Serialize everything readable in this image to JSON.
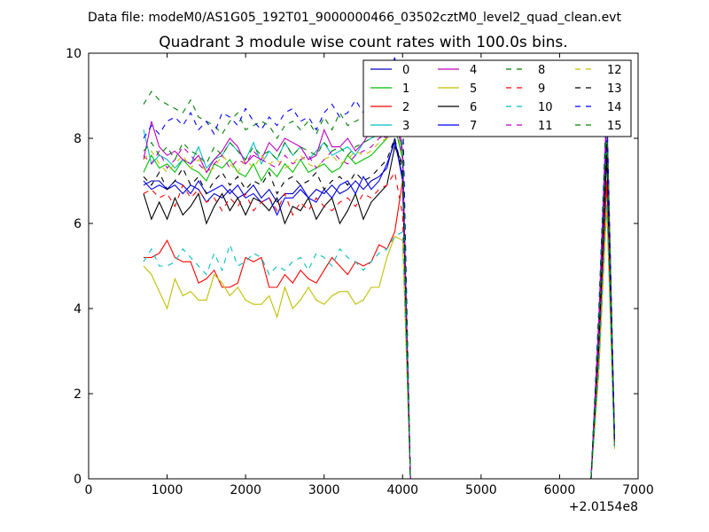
{
  "header": {
    "data_file": "Data file: modeM0/AS1G05_192T01_9000000466_03502cztM0_level2_quad_clean.evt"
  },
  "chart_data": {
    "type": "line",
    "title": "Quadrant 3 module wise count rates with 100.0s bins.",
    "xlabel": "",
    "ylabel": "",
    "x_offset_label": "+2.0154e8",
    "xlim": [
      0,
      7000
    ],
    "ylim": [
      0,
      10
    ],
    "xticks": [
      0,
      1000,
      2000,
      3000,
      4000,
      5000,
      6000,
      7000
    ],
    "yticks": [
      0,
      2,
      4,
      6,
      8,
      10
    ],
    "x": [
      700,
      800,
      900,
      1000,
      1100,
      1200,
      1300,
      1400,
      1500,
      1600,
      1700,
      1800,
      1900,
      2000,
      2100,
      2200,
      2300,
      2400,
      2500,
      2600,
      2700,
      2800,
      2900,
      3000,
      3100,
      3200,
      3300,
      3400,
      3500,
      3600,
      3700,
      3800,
      3900,
      4000,
      4100,
      4200,
      4300,
      4400,
      4500,
      4600,
      4700,
      4800,
      4900,
      5000,
      5100,
      5200,
      5300,
      5400,
      5500,
      5600,
      5700,
      5800,
      5900,
      6000,
      6100,
      6200,
      6300,
      6400,
      6500,
      6600,
      6700
    ],
    "legend": {
      "location": "upper-right",
      "ncol": 4
    },
    "series": [
      {
        "name": "0",
        "color": "#0000bf",
        "dash": "solid",
        "values": [
          6.9,
          7.0,
          7.0,
          6.8,
          6.9,
          6.7,
          6.9,
          6.8,
          6.5,
          6.7,
          6.6,
          6.8,
          6.6,
          6.7,
          6.9,
          6.6,
          6.8,
          6.5,
          6.7,
          6.7,
          6.9,
          6.6,
          6.8,
          6.7,
          6.9,
          6.7,
          6.8,
          7.0,
          6.8,
          7.0,
          7.1,
          7.3,
          8.0,
          7.0,
          0,
          0,
          0,
          0,
          0,
          0,
          0,
          0,
          0,
          0,
          0,
          0,
          0,
          0,
          0,
          0,
          0,
          0,
          0,
          0,
          0,
          0,
          0,
          0,
          3.5,
          8.3,
          1.0
        ]
      },
      {
        "name": "1",
        "color": "#00bf00",
        "dash": "solid",
        "values": [
          7.2,
          7.6,
          7.3,
          7.4,
          7.2,
          7.5,
          7.3,
          7.2,
          7.0,
          7.4,
          7.3,
          7.5,
          7.2,
          7.1,
          7.4,
          7.0,
          7.3,
          7.1,
          7.4,
          7.2,
          7.5,
          7.2,
          7.3,
          7.4,
          7.2,
          7.3,
          7.6,
          7.4,
          7.5,
          7.6,
          7.8,
          8.0,
          8.3,
          7.5,
          0,
          0,
          0,
          0,
          0,
          0,
          0,
          0,
          0,
          0,
          0,
          0,
          0,
          0,
          0,
          0,
          0,
          0,
          0,
          0,
          0,
          0,
          0,
          0,
          3.5,
          8.0,
          0.9
        ]
      },
      {
        "name": "2",
        "color": "#ff0000",
        "dash": "solid",
        "values": [
          5.2,
          5.2,
          5.3,
          5.6,
          5.2,
          5.1,
          5.1,
          4.6,
          4.7,
          4.9,
          4.5,
          4.5,
          4.6,
          5.2,
          5.1,
          5.2,
          4.5,
          4.5,
          4.8,
          4.6,
          4.9,
          4.7,
          4.6,
          4.9,
          5.2,
          5.0,
          4.8,
          5.1,
          5.0,
          5.1,
          5.5,
          5.4,
          5.8,
          7.0,
          0,
          0,
          0,
          0,
          0,
          0,
          0,
          0,
          0,
          0,
          0,
          0,
          0,
          0,
          0,
          0,
          0,
          0,
          0,
          0,
          0,
          0,
          0,
          0,
          3.0,
          7.0,
          0.8
        ]
      },
      {
        "name": "3",
        "color": "#00bfbf",
        "dash": "solid",
        "values": [
          8.2,
          7.4,
          7.6,
          7.5,
          7.3,
          7.5,
          7.4,
          7.8,
          7.3,
          7.5,
          7.6,
          7.9,
          7.7,
          7.5,
          7.9,
          7.4,
          7.7,
          7.5,
          7.9,
          7.6,
          7.8,
          7.5,
          7.7,
          7.9,
          7.6,
          7.7,
          7.8,
          7.6,
          7.9,
          8.0,
          8.1,
          8.2,
          8.6,
          7.6,
          0,
          0,
          0,
          0,
          0,
          0,
          0,
          0,
          0,
          0,
          0,
          0,
          0,
          0,
          0,
          0,
          0,
          0,
          0,
          0,
          0,
          0,
          0,
          0,
          3.6,
          8.4,
          0.9
        ]
      },
      {
        "name": "4",
        "color": "#bf00bf",
        "dash": "solid",
        "values": [
          7.5,
          8.4,
          7.8,
          7.6,
          7.7,
          7.5,
          7.4,
          7.6,
          7.2,
          7.5,
          7.7,
          8.0,
          7.8,
          7.4,
          7.6,
          7.5,
          7.9,
          7.7,
          8.0,
          7.9,
          7.8,
          7.5,
          7.6,
          8.2,
          7.8,
          7.8,
          8.0,
          7.7,
          7.9,
          8.2,
          8.1,
          8.0,
          9.0,
          7.7,
          0,
          0,
          0,
          0,
          0,
          0,
          0,
          0,
          0,
          0,
          0,
          0,
          0,
          0,
          0,
          0,
          0,
          0,
          0,
          0,
          0,
          0,
          0,
          0,
          3.8,
          8.8,
          1.0
        ]
      },
      {
        "name": "5",
        "color": "#bfbf00",
        "dash": "solid",
        "values": [
          5.0,
          4.8,
          4.4,
          4.0,
          4.7,
          4.3,
          4.4,
          4.2,
          4.2,
          4.8,
          4.6,
          4.3,
          4.5,
          4.2,
          4.1,
          4.1,
          4.3,
          3.8,
          4.5,
          4.0,
          4.2,
          4.5,
          4.2,
          4.1,
          4.3,
          4.4,
          4.4,
          4.1,
          4.2,
          4.5,
          4.5,
          5.2,
          5.7,
          5.6,
          0,
          0,
          0,
          0,
          0,
          0,
          0,
          0,
          0,
          0,
          0,
          0,
          0,
          0,
          0,
          0,
          0,
          0,
          0,
          0,
          0,
          0,
          0,
          0,
          2.5,
          6.4,
          0.7
        ]
      },
      {
        "name": "6",
        "color": "#000000",
        "dash": "solid",
        "values": [
          6.7,
          6.1,
          6.5,
          6.1,
          6.6,
          6.2,
          6.4,
          6.7,
          6.0,
          6.4,
          6.7,
          6.3,
          6.6,
          6.2,
          6.6,
          6.5,
          6.3,
          6.6,
          6.0,
          6.4,
          6.3,
          6.6,
          6.1,
          6.4,
          6.6,
          6.0,
          6.3,
          6.7,
          6.1,
          6.5,
          6.7,
          6.9,
          7.8,
          7.4,
          0,
          0,
          0,
          0,
          0,
          0,
          0,
          0,
          0,
          0,
          0,
          0,
          0,
          0,
          0,
          0,
          0,
          0,
          0,
          0,
          0,
          0,
          0,
          0,
          3.1,
          7.6,
          0.8
        ]
      },
      {
        "name": "7",
        "color": "#0000ff",
        "dash": "solid",
        "values": [
          7.0,
          6.8,
          6.9,
          6.8,
          7.0,
          6.9,
          6.7,
          7.0,
          6.7,
          6.8,
          6.9,
          6.7,
          6.9,
          6.6,
          6.7,
          6.5,
          6.6,
          6.2,
          6.6,
          6.6,
          6.8,
          6.6,
          6.5,
          6.8,
          6.6,
          6.9,
          7.0,
          6.7,
          7.1,
          6.8,
          7.0,
          7.4,
          7.9,
          7.1,
          0,
          0,
          0,
          0,
          0,
          0,
          0,
          0,
          0,
          0,
          0,
          0,
          0,
          0,
          0,
          0,
          0,
          0,
          0,
          0,
          0,
          0,
          0,
          0,
          3.3,
          8.2,
          0.9
        ]
      },
      {
        "name": "8",
        "color": "#008000",
        "dash": "dashed",
        "values": [
          8.8,
          9.1,
          8.9,
          8.8,
          8.7,
          8.6,
          8.9,
          8.5,
          8.4,
          8.3,
          8.1,
          8.4,
          8.6,
          8.2,
          8.3,
          8.4,
          8.3,
          8.0,
          8.3,
          8.4,
          8.2,
          8.4,
          8.1,
          8.5,
          8.2,
          8.6,
          8.3,
          8.4,
          8.5,
          8.5,
          8.6,
          8.7,
          9.4,
          8.6,
          0,
          0,
          0,
          0,
          0,
          0,
          0,
          0,
          0,
          0,
          0,
          0,
          0,
          0,
          0,
          0,
          0,
          0,
          0,
          0,
          0,
          0,
          0,
          0,
          3.8,
          8.6,
          1.0
        ]
      },
      {
        "name": "9",
        "color": "#ff0000",
        "dash": "dashed",
        "values": [
          6.7,
          6.8,
          6.6,
          6.7,
          6.4,
          6.9,
          6.6,
          6.8,
          6.5,
          6.6,
          6.3,
          6.6,
          6.4,
          6.7,
          6.3,
          6.5,
          6.6,
          6.3,
          6.7,
          6.2,
          6.5,
          6.3,
          6.6,
          6.4,
          6.3,
          6.5,
          6.6,
          6.4,
          6.7,
          6.6,
          6.8,
          6.9,
          7.2,
          6.2,
          0,
          0,
          0,
          0,
          0,
          0,
          0,
          0,
          0,
          0,
          0,
          0,
          0,
          0,
          0,
          0,
          0,
          0,
          0,
          0,
          0,
          0,
          0,
          0,
          2.9,
          7.0,
          0.7
        ]
      },
      {
        "name": "10",
        "color": "#00bfbf",
        "dash": "dashed",
        "values": [
          5.1,
          5.4,
          5.0,
          5.0,
          5.1,
          5.4,
          5.2,
          5.0,
          4.8,
          5.3,
          4.9,
          5.5,
          5.0,
          5.1,
          5.3,
          5.2,
          4.8,
          5.0,
          4.9,
          5.1,
          5.2,
          4.9,
          5.3,
          5.2,
          5.0,
          5.4,
          5.2,
          5.1,
          4.9,
          5.1,
          5.3,
          5.4,
          5.7,
          5.8,
          0,
          0,
          0,
          0,
          0,
          0,
          0,
          0,
          0,
          0,
          0,
          0,
          0,
          0,
          0,
          0,
          0,
          0,
          0,
          0,
          0,
          0,
          0,
          0,
          2.6,
          6.6,
          0.7
        ]
      },
      {
        "name": "11",
        "color": "#bf00bf",
        "dash": "dashed",
        "values": [
          7.6,
          7.4,
          7.7,
          7.3,
          7.5,
          7.8,
          7.6,
          7.4,
          7.2,
          7.4,
          7.6,
          7.3,
          7.5,
          7.4,
          7.7,
          7.5,
          7.4,
          7.3,
          7.6,
          7.4,
          7.5,
          7.6,
          7.3,
          7.5,
          7.7,
          7.5,
          7.4,
          7.6,
          7.7,
          7.8,
          8.0,
          8.1,
          8.8,
          7.5,
          0,
          0,
          0,
          0,
          0,
          0,
          0,
          0,
          0,
          0,
          0,
          0,
          0,
          0,
          0,
          0,
          0,
          0,
          0,
          0,
          0,
          0,
          0,
          0,
          3.5,
          8.5,
          0.9
        ]
      },
      {
        "name": "12",
        "color": "#bfbf00",
        "dash": "dashed",
        "values": [
          7.5,
          7.7,
          7.4,
          7.2,
          7.4,
          7.6,
          7.3,
          7.5,
          7.2,
          7.3,
          7.6,
          7.4,
          7.2,
          7.5,
          7.3,
          7.6,
          7.4,
          7.5,
          7.3,
          7.4,
          7.6,
          7.4,
          7.3,
          7.5,
          7.6,
          7.4,
          7.5,
          7.7,
          7.6,
          7.7,
          7.9,
          8.0,
          8.4,
          7.6,
          0,
          0,
          0,
          0,
          0,
          0,
          0,
          0,
          0,
          0,
          0,
          0,
          0,
          0,
          0,
          0,
          0,
          0,
          0,
          0,
          0,
          0,
          0,
          0,
          3.4,
          8.3,
          0.8
        ]
      },
      {
        "name": "13",
        "color": "#000000",
        "dash": "dashed",
        "values": [
          7.1,
          6.9,
          7.2,
          6.8,
          7.0,
          7.3,
          6.9,
          7.1,
          6.7,
          7.0,
          7.2,
          6.9,
          7.1,
          6.8,
          7.0,
          6.9,
          7.2,
          6.7,
          7.0,
          7.1,
          6.9,
          7.0,
          7.2,
          6.8,
          7.0,
          7.1,
          6.9,
          7.2,
          7.0,
          7.1,
          7.3,
          7.5,
          8.0,
          7.2,
          0,
          0,
          0,
          0,
          0,
          0,
          0,
          0,
          0,
          0,
          0,
          0,
          0,
          0,
          0,
          0,
          0,
          0,
          0,
          0,
          0,
          0,
          0,
          0,
          3.3,
          7.9,
          0.8
        ]
      },
      {
        "name": "14",
        "color": "#0000ff",
        "dash": "dashed",
        "values": [
          8.0,
          8.3,
          8.1,
          8.4,
          8.5,
          8.3,
          8.6,
          8.2,
          8.4,
          8.1,
          8.6,
          8.5,
          8.3,
          8.7,
          8.4,
          8.2,
          8.5,
          8.3,
          8.6,
          8.7,
          8.4,
          8.5,
          8.2,
          8.6,
          8.8,
          8.5,
          8.6,
          8.9,
          8.6,
          8.8,
          9.0,
          9.3,
          9.9,
          8.8,
          0,
          0,
          0,
          0,
          0,
          0,
          0,
          0,
          0,
          0,
          0,
          0,
          0,
          0,
          0,
          0,
          0,
          0,
          0,
          0,
          0,
          0,
          0,
          0,
          4.0,
          8.9,
          1.0
        ]
      },
      {
        "name": "15",
        "color": "#008000",
        "dash": "dashed",
        "values": [
          7.7,
          7.9,
          7.6,
          7.8,
          7.5,
          7.9,
          7.7,
          7.6,
          7.4,
          7.8,
          7.6,
          7.9,
          7.7,
          7.5,
          7.8,
          7.6,
          7.7,
          7.5,
          7.9,
          7.6,
          7.8,
          7.7,
          7.6,
          7.9,
          7.7,
          7.8,
          7.6,
          7.8,
          7.9,
          8.0,
          8.1,
          8.3,
          8.9,
          7.8,
          0,
          0,
          0,
          0,
          0,
          0,
          0,
          0,
          0,
          0,
          0,
          0,
          0,
          0,
          0,
          0,
          0,
          0,
          0,
          0,
          0,
          0,
          0,
          0,
          3.6,
          8.6,
          0.9
        ]
      }
    ]
  }
}
